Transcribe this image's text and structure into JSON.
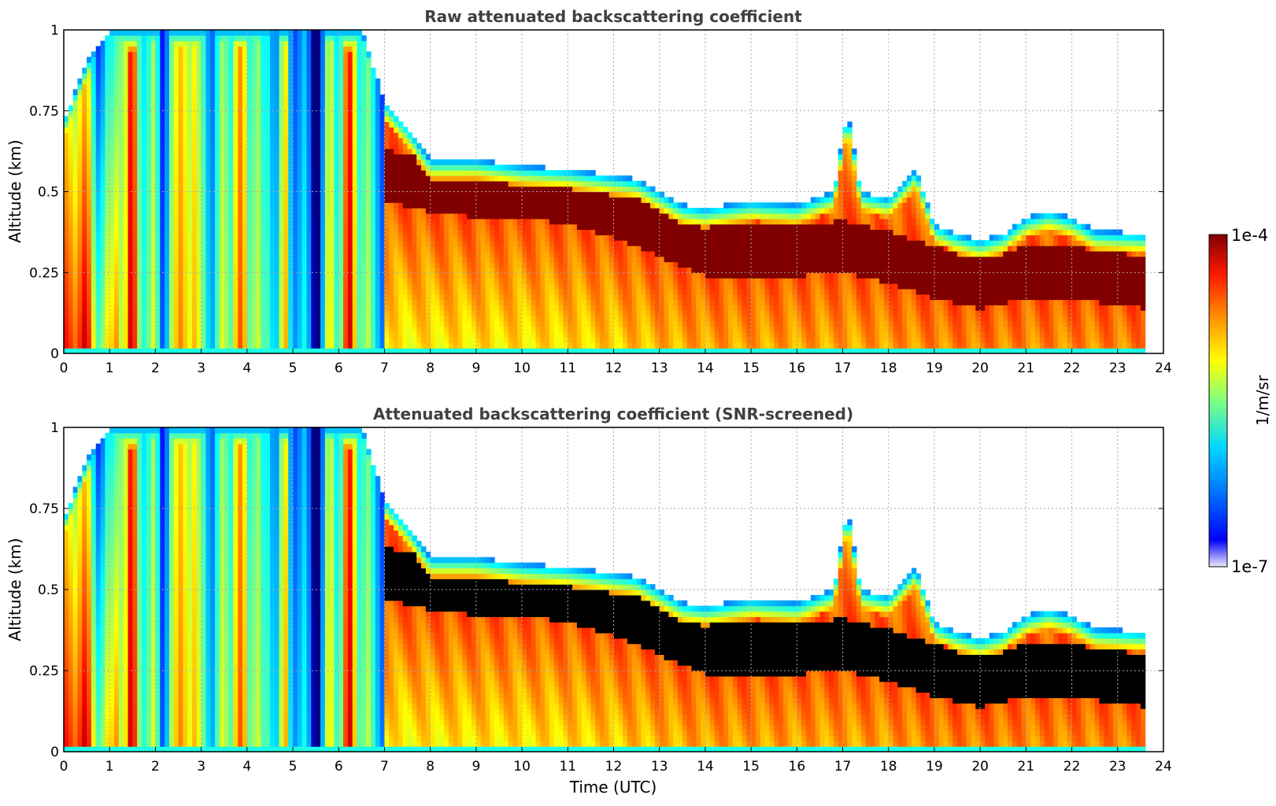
{
  "chart_data": [
    {
      "type": "heatmap",
      "title": "Raw attenuated backscattering coefficient",
      "xlabel": "",
      "ylabel": "Altitude (km)",
      "xlim": [
        0,
        24
      ],
      "ylim": [
        0,
        1
      ],
      "xticks": [
        "0",
        "1",
        "2",
        "3",
        "4",
        "5",
        "6",
        "7",
        "8",
        "9",
        "10",
        "11",
        "12",
        "13",
        "14",
        "15",
        "16",
        "17",
        "18",
        "19",
        "20",
        "21",
        "22",
        "23",
        "24"
      ],
      "yticks": [
        "0",
        "0.25",
        "0.5",
        "0.75",
        "1"
      ],
      "grid": true,
      "screened": false
    },
    {
      "type": "heatmap",
      "title": "Attenuated backscattering coefficient (SNR-screened)",
      "xlabel": "Time (UTC)",
      "ylabel": "Altitude (km)",
      "xlim": [
        0,
        24
      ],
      "ylim": [
        0,
        1
      ],
      "xticks": [
        "0",
        "1",
        "2",
        "3",
        "4",
        "5",
        "6",
        "7",
        "8",
        "9",
        "10",
        "11",
        "12",
        "13",
        "14",
        "15",
        "16",
        "17",
        "18",
        "19",
        "20",
        "21",
        "22",
        "23",
        "24"
      ],
      "yticks": [
        "0",
        "0.25",
        "0.5",
        "0.75",
        "1"
      ],
      "grid": true,
      "screened": true
    }
  ],
  "colorbar": {
    "label": "1/m/sr",
    "max_label": "1e-4",
    "min_label": "1e-7",
    "colormap": "jet",
    "scale": "log"
  },
  "profile": {
    "data_end_hour": 23.6,
    "cloud_top_km": [
      [
        0,
        0.72
      ],
      [
        0.5,
        0.9
      ],
      [
        1,
        1.0
      ],
      [
        6.5,
        1.0
      ],
      [
        7,
        0.78
      ],
      [
        7.5,
        0.7
      ],
      [
        8,
        0.6
      ],
      [
        9,
        0.6
      ],
      [
        10,
        0.58
      ],
      [
        11,
        0.57
      ],
      [
        12,
        0.55
      ],
      [
        12.5,
        0.54
      ],
      [
        13,
        0.5
      ],
      [
        13.5,
        0.46
      ],
      [
        14,
        0.45
      ],
      [
        15,
        0.47
      ],
      [
        16,
        0.46
      ],
      [
        16.8,
        0.5
      ],
      [
        17.1,
        0.75
      ],
      [
        17.4,
        0.5
      ],
      [
        18,
        0.48
      ],
      [
        18.6,
        0.57
      ],
      [
        19,
        0.4
      ],
      [
        19.5,
        0.37
      ],
      [
        20,
        0.35
      ],
      [
        20.5,
        0.37
      ],
      [
        21,
        0.42
      ],
      [
        21.5,
        0.44
      ],
      [
        22,
        0.42
      ],
      [
        22.5,
        0.38
      ],
      [
        23.6,
        0.37
      ]
    ],
    "dense_layer_km": [
      [
        7,
        0.55
      ],
      [
        8,
        0.52
      ],
      [
        9,
        0.5
      ],
      [
        10,
        0.5
      ],
      [
        11,
        0.48
      ],
      [
        12,
        0.44
      ],
      [
        13,
        0.38
      ],
      [
        14,
        0.32
      ],
      [
        15,
        0.32
      ],
      [
        16,
        0.32
      ],
      [
        17,
        0.33
      ],
      [
        18,
        0.3
      ],
      [
        19,
        0.25
      ],
      [
        20,
        0.22
      ],
      [
        21,
        0.25
      ],
      [
        22,
        0.25
      ],
      [
        23.6,
        0.22
      ]
    ],
    "streak_hours": [
      1.2,
      1.5,
      2.0,
      2.6,
      3.1,
      3.5,
      4.2,
      4.5,
      5.8,
      6.2,
      6.6
    ]
  }
}
